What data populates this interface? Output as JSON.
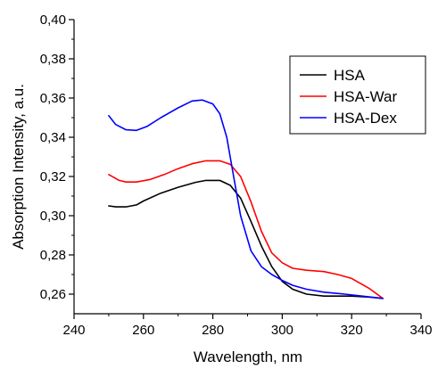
{
  "chart_data": {
    "type": "line",
    "title": "",
    "xlabel": "Wavelength, nm",
    "ylabel": "Absorption Intensity, a.u.",
    "xlim": [
      240,
      340
    ],
    "ylim": [
      0.25,
      0.4
    ],
    "x_ticks": [
      240,
      260,
      280,
      300,
      320,
      340
    ],
    "x_tick_labels": [
      "240",
      "260",
      "280",
      "300",
      "320",
      "340"
    ],
    "y_ticks": [
      0.26,
      0.28,
      0.3,
      0.32,
      0.34,
      0.36,
      0.38,
      0.4
    ],
    "y_tick_labels": [
      "0,26",
      "0,28",
      "0,30",
      "0,32",
      "0,34",
      "0,36",
      "0,38",
      "0,40"
    ],
    "grid": false,
    "legend_position": "top-right",
    "series": [
      {
        "name": "HSA",
        "color": "#000000",
        "points": [
          [
            250,
            0.305
          ],
          [
            252,
            0.3045
          ],
          [
            255,
            0.3045
          ],
          [
            258,
            0.3055
          ],
          [
            260,
            0.3075
          ],
          [
            265,
            0.3115
          ],
          [
            270,
            0.3145
          ],
          [
            275,
            0.317
          ],
          [
            278,
            0.318
          ],
          [
            282,
            0.318
          ],
          [
            285,
            0.3155
          ],
          [
            288,
            0.309
          ],
          [
            291,
            0.297
          ],
          [
            294,
            0.2845
          ],
          [
            297,
            0.274
          ],
          [
            300,
            0.2665
          ],
          [
            303,
            0.2625
          ],
          [
            307,
            0.26
          ],
          [
            312,
            0.259
          ],
          [
            320,
            0.259
          ],
          [
            325,
            0.2585
          ],
          [
            329,
            0.2578
          ]
        ]
      },
      {
        "name": "HSA-War",
        "color": "#ff0000",
        "points": [
          [
            250,
            0.321
          ],
          [
            253,
            0.318
          ],
          [
            255,
            0.3172
          ],
          [
            258,
            0.3172
          ],
          [
            262,
            0.3185
          ],
          [
            266,
            0.321
          ],
          [
            270,
            0.324
          ],
          [
            274,
            0.3265
          ],
          [
            278,
            0.328
          ],
          [
            282,
            0.328
          ],
          [
            285,
            0.3262
          ],
          [
            288,
            0.32
          ],
          [
            291,
            0.307
          ],
          [
            294,
            0.292
          ],
          [
            297,
            0.281
          ],
          [
            300,
            0.276
          ],
          [
            303,
            0.2732
          ],
          [
            307,
            0.2722
          ],
          [
            312,
            0.2715
          ],
          [
            316,
            0.27
          ],
          [
            320,
            0.268
          ],
          [
            325,
            0.263
          ],
          [
            329,
            0.2578
          ]
        ]
      },
      {
        "name": "HSA-Dex",
        "color": "#0000ff",
        "points": [
          [
            250,
            0.351
          ],
          [
            252,
            0.3465
          ],
          [
            255,
            0.3438
          ],
          [
            258,
            0.3435
          ],
          [
            261,
            0.3455
          ],
          [
            265,
            0.35
          ],
          [
            270,
            0.355
          ],
          [
            274,
            0.3585
          ],
          [
            277,
            0.359
          ],
          [
            280,
            0.357
          ],
          [
            282,
            0.352
          ],
          [
            284,
            0.34
          ],
          [
            286,
            0.32
          ],
          [
            288,
            0.3
          ],
          [
            291,
            0.282
          ],
          [
            294,
            0.274
          ],
          [
            297,
            0.27
          ],
          [
            300,
            0.267
          ],
          [
            303,
            0.2645
          ],
          [
            307,
            0.2625
          ],
          [
            312,
            0.261
          ],
          [
            318,
            0.26
          ],
          [
            323,
            0.259
          ],
          [
            329,
            0.2578
          ]
        ]
      }
    ]
  }
}
